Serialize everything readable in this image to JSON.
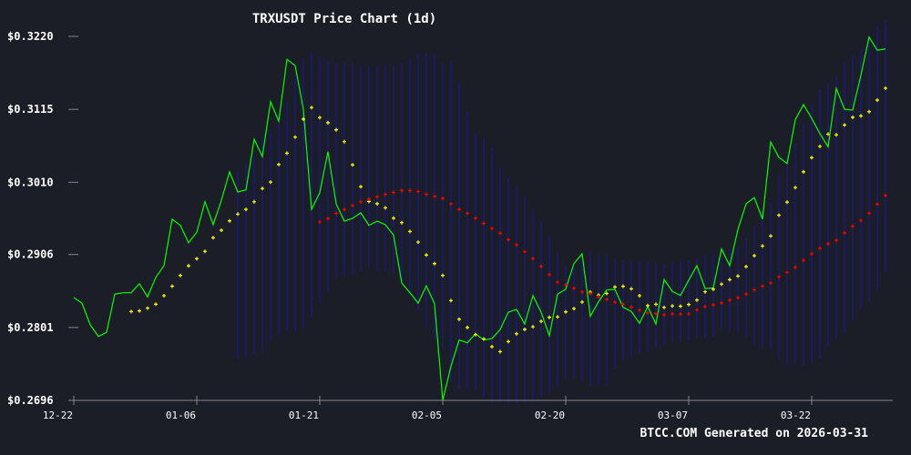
{
  "chart_data": {
    "type": "line",
    "title": "TRXUSDT Price Chart (1d)",
    "footer": "BTCC.COM Generated on 2026-03-31",
    "ylim": [
      0.2696,
      0.322
    ],
    "y_ticks": [
      "$0.3220",
      "$0.3115",
      "$0.3010",
      "$0.2906",
      "$0.2801",
      "$0.2696"
    ],
    "y_tick_values": [
      0.322,
      0.3115,
      0.301,
      0.2906,
      0.2801,
      0.2696
    ],
    "x_ticks": [
      "12-22",
      "01-06",
      "01-21",
      "02-05",
      "02-20",
      "03-07",
      "03-22"
    ],
    "grid": false,
    "colors": {
      "background": "#1b1d27",
      "price": "#00ff00",
      "short_ma": "#ffff00",
      "long_ma": "#ff0000",
      "bands": "#1a1a8c",
      "axis": "#888888",
      "text": "#ffffff"
    },
    "x": [
      "12-22",
      "12-23",
      "12-24",
      "12-25",
      "12-26",
      "12-27",
      "12-28",
      "12-29",
      "12-30",
      "12-31",
      "01-01",
      "01-02",
      "01-03",
      "01-04",
      "01-05",
      "01-06",
      "01-07",
      "01-08",
      "01-09",
      "01-10",
      "01-11",
      "01-12",
      "01-13",
      "01-14",
      "01-15",
      "01-16",
      "01-17",
      "01-18",
      "01-19",
      "01-20",
      "01-21",
      "01-22",
      "01-23",
      "01-24",
      "01-25",
      "01-26",
      "01-27",
      "01-28",
      "01-29",
      "01-30",
      "01-31",
      "02-01",
      "02-02",
      "02-03",
      "02-04",
      "02-05",
      "02-06",
      "02-07",
      "02-08",
      "02-09",
      "02-10",
      "02-11",
      "02-12",
      "02-13",
      "02-14",
      "02-15",
      "02-16",
      "02-17",
      "02-18",
      "02-19",
      "02-20",
      "02-21",
      "02-22",
      "02-23",
      "02-24",
      "02-25",
      "02-26",
      "02-27",
      "02-28",
      "03-01",
      "03-02",
      "03-03",
      "03-04",
      "03-05",
      "03-06",
      "03-07",
      "03-08",
      "03-09",
      "03-10",
      "03-11",
      "03-12",
      "03-13",
      "03-14",
      "03-15",
      "03-16",
      "03-17",
      "03-18",
      "03-19",
      "03-20",
      "03-21",
      "03-22",
      "03-23",
      "03-24",
      "03-25",
      "03-26",
      "03-27",
      "03-28",
      "03-29",
      "03-30",
      "03-31"
    ],
    "close": [
      0.2844,
      0.2836,
      0.2805,
      0.2788,
      0.2794,
      0.2849,
      0.2851,
      0.2851,
      0.2864,
      0.2845,
      0.2873,
      0.289,
      0.2957,
      0.2948,
      0.2923,
      0.2938,
      0.2982,
      0.2949,
      0.2984,
      0.3025,
      0.2996,
      0.2999,
      0.3072,
      0.3047,
      0.3126,
      0.3098,
      0.3187,
      0.3178,
      0.3115,
      0.2971,
      0.2995,
      0.3054,
      0.2979,
      0.2954,
      0.2958,
      0.2966,
      0.2948,
      0.2954,
      0.2949,
      0.2934,
      0.2865,
      0.2851,
      0.2836,
      0.2861,
      0.2835,
      0.2696,
      0.2745,
      0.2783,
      0.2779,
      0.2792,
      0.2783,
      0.2785,
      0.2798,
      0.2823,
      0.2827,
      0.2806,
      0.2847,
      0.2823,
      0.2789,
      0.2849,
      0.2856,
      0.2893,
      0.2907,
      0.2817,
      0.2838,
      0.2855,
      0.2856,
      0.283,
      0.2824,
      0.2807,
      0.2831,
      0.2806,
      0.287,
      0.2853,
      0.2847,
      0.2869,
      0.289,
      0.2857,
      0.2858,
      0.2914,
      0.289,
      0.2942,
      0.2979,
      0.2988,
      0.2957,
      0.3068,
      0.3046,
      0.3037,
      0.31,
      0.3122,
      0.3102,
      0.308,
      0.3061,
      0.3145,
      0.3115,
      0.3114,
      0.3164,
      0.3219,
      0.32,
      0.3202
    ]
  }
}
